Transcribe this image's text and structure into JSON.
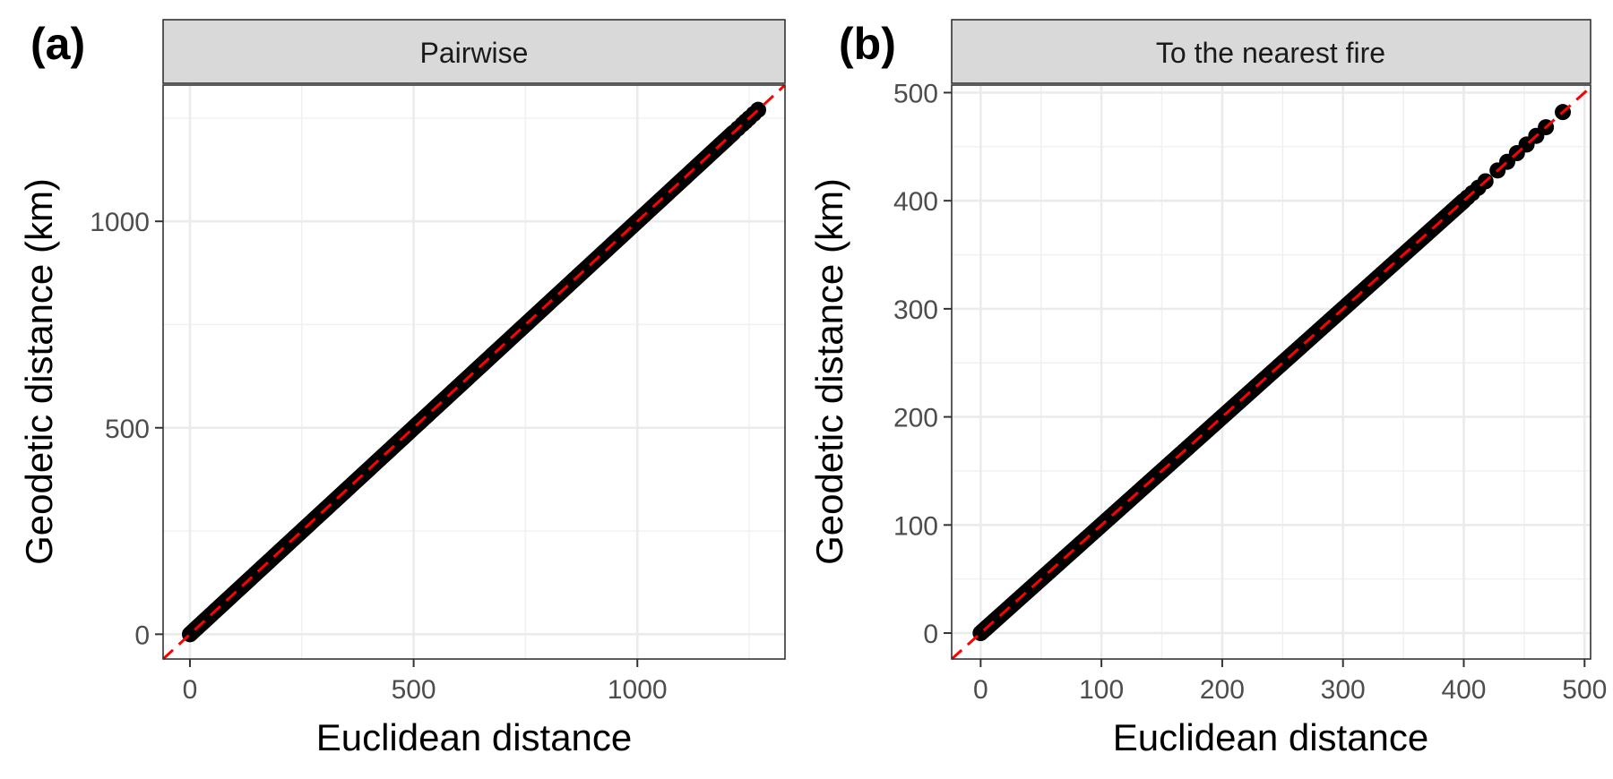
{
  "chart_data": [
    {
      "type": "scatter",
      "tag": "(a)",
      "strip": "Pairwise",
      "xlabel": "Euclidean distance",
      "ylabel": "Geodetic distance (km)",
      "xlim": [
        -60,
        1330
      ],
      "ylim": [
        -60,
        1330
      ],
      "x_ticks": [
        0,
        500,
        1000
      ],
      "x_tick_labels": [
        "0",
        "500",
        "1000"
      ],
      "y_ticks": [
        0,
        500,
        1000
      ],
      "y_tick_labels": [
        "0",
        "500",
        "1000"
      ],
      "x_minor": [
        250,
        750,
        1250
      ],
      "y_minor": [
        250,
        750,
        1250
      ],
      "grid": true,
      "points": {
        "from": 0,
        "to": 1215,
        "step": 3,
        "extra_x": [
          1225,
          1235,
          1242,
          1250,
          1260,
          1270
        ]
      },
      "reference_line": {
        "slope": 1,
        "intercept": 0,
        "color": "#ff0000",
        "style": "dashed"
      }
    },
    {
      "type": "scatter",
      "tag": "(b)",
      "strip": "To the nearest fire",
      "xlabel": "Euclidean distance",
      "ylabel": "Geodetic distance (km)",
      "xlim": [
        -24,
        505
      ],
      "ylim": [
        -24,
        507
      ],
      "x_ticks": [
        0,
        100,
        200,
        300,
        400,
        500
      ],
      "x_tick_labels": [
        "0",
        "100",
        "200",
        "300",
        "400",
        "500"
      ],
      "y_ticks": [
        0,
        100,
        200,
        300,
        400,
        500
      ],
      "y_tick_labels": [
        "0",
        "100",
        "200",
        "300",
        "400",
        "500"
      ],
      "x_minor": [
        50,
        150,
        250,
        350,
        450
      ],
      "y_minor": [
        50,
        150,
        250,
        350,
        450
      ],
      "grid": true,
      "points": {
        "from": 0,
        "to": 400,
        "step": 1,
        "extra_x": [
          403,
          407,
          412,
          418,
          428,
          436,
          444,
          452,
          460,
          468,
          482
        ]
      },
      "reference_line": {
        "slope": 1,
        "intercept": 0,
        "color": "#ff0000",
        "style": "dashed"
      }
    }
  ]
}
